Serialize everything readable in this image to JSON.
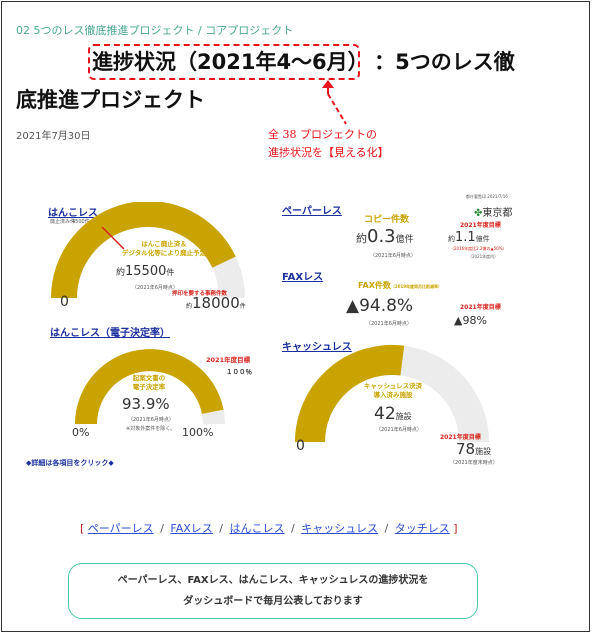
{
  "breadcrumb": {
    "part1": "02 5つのレス徹底推進プロジェクト",
    "separator": "/",
    "part2": "コアプロジェクト"
  },
  "article": {
    "title_highlight": "進捗状況（2021年4～6月）",
    "title_rest": "：5つのレス徹",
    "title_line2": "底推進プロジェクト",
    "date": "2021年7月30日"
  },
  "callout": {
    "line1": "全 38 プロジェクトの",
    "line2": "進捗状況を【見える化】"
  },
  "dashboard": {
    "hanko": {
      "label": "はんこレス",
      "abolished_label": "廃止済み件",
      "abolished_value": "4500件",
      "desc_line1": "はんこ廃止済＆",
      "desc_line2": "デジタル化等により廃止予定",
      "prefix": "約",
      "value": "15500",
      "unit": "件",
      "as_of": "（2021年6月時点）",
      "target_label": "押印を要する事務件数",
      "target_prefix": "約",
      "target_value": "18000",
      "target_unit": "件",
      "zero": "0",
      "progress": 0.86
    },
    "hanko_e": {
      "label": "はんこレス（電子決定率）",
      "target_label": "2021年度目標",
      "target_value": "１００％",
      "desc_line1": "起案文書の",
      "desc_line2": "電子決定率",
      "value": "93.9%",
      "as_of": "（2021年6月時点）",
      "note": "※対象外案件を除く。",
      "min": "0%",
      "max": "100%",
      "progress": 0.939
    },
    "detail_link": "◆詳細は各項目をクリック◆",
    "paper": {
      "label": "ペーパーレス",
      "source": "都庁要覧印 2021/7/16",
      "logo_text": "東京都",
      "copy_label": "コピー件数",
      "prefix": "約",
      "value": "0.3",
      "unit": "億件",
      "as_of": "（2021年6月時点）",
      "target_label": "2021年度目標",
      "target_prefix": "約",
      "target_value": "1.1",
      "target_unit": "億件",
      "target_note": "（2016年度比2.2億の▲50%）",
      "target_note2": "（2021年度内）"
    },
    "fax": {
      "label": "FAXレス",
      "count_label": "FAX件数",
      "count_note": "（2019年度同月比削減率）",
      "value": "▲94.8%",
      "as_of": "（2021年6月時点）",
      "target_label": "2021年度目標",
      "target_value": "▲98%"
    },
    "cashless": {
      "label": "キャッシュレス",
      "desc_line1": "キャッシュレス決済",
      "desc_line2": "導入済み施設",
      "value": "42",
      "unit": "施設",
      "as_of": "（2021年6月時点）",
      "target_label": "2021年度目標",
      "target_value": "78",
      "target_unit": "施設",
      "target_as_of": "（2021年度末時点）",
      "zero": "0",
      "progress": 0.54
    }
  },
  "links": {
    "open": "[",
    "close": "]",
    "sep": "/",
    "items": [
      "ペーパーレス",
      "FAXレス",
      "はんこレス",
      "キャッシュレス",
      "タッチレス"
    ]
  },
  "notice": {
    "line1": "ペーパーレス、FAXレス、はんこレス、キャッシュレスの進捗状況を",
    "line2": "ダッシュボードで毎月公表しております"
  },
  "colors": {
    "accent": "#4aa892",
    "gauge_gold": "#c9a400",
    "gauge_track": "#ececec",
    "alert_red": "#e8141b",
    "link_blue": "#2f4fd1"
  }
}
